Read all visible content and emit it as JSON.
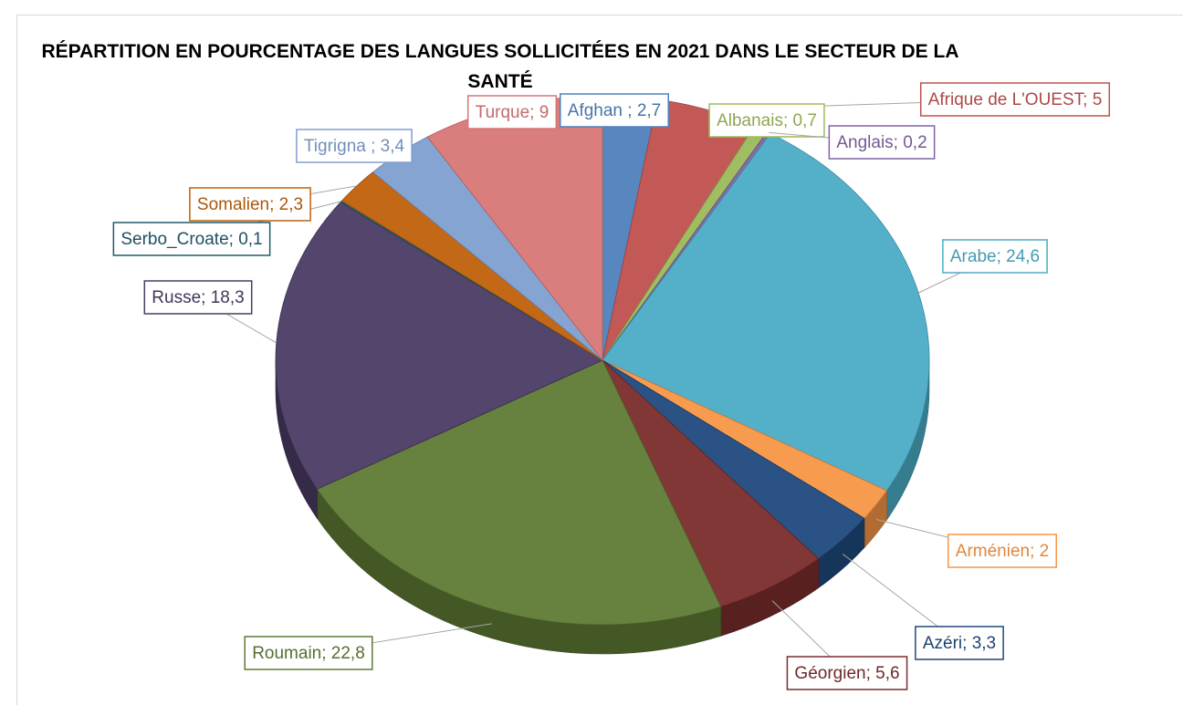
{
  "chart_data": {
    "type": "pie3d",
    "title": "RÉPARTITION EN POURCENTAGE DES LANGUES SOLLICITÉES EN 2021 DANS LE SECTEUR DE LA SANTÉ",
    "values": [
      2.7,
      5,
      0.7,
      0.2,
      24.6,
      2,
      3.3,
      5.6,
      22.8,
      18.3,
      0.1,
      2.3,
      3.4,
      9
    ],
    "value_labels": [
      "Afghan ; 2,7",
      "Afrique de L'OUEST; 5",
      "Albanais; 0,7",
      "Anglais; 0,2",
      "Arabe; 24,6",
      "Arménien; 2",
      "Azéri; 3,3",
      "Géorgien; 5,6",
      "Roumain; 22,8",
      "Russe; 18,3",
      "Serbo_Croate; 0,1",
      "Somalien; 2,3",
      "Tigrigna ; 3,4",
      "Turque; 9"
    ],
    "colors": [
      "#4f81bd",
      "#c0504d",
      "#9bbb59",
      "#8064a2",
      "#4bacc6",
      "#f79646",
      "#1f497d",
      "#7b2c2c",
      "#5f7a34",
      "#4a3b63",
      "#215968",
      "#c0600a",
      "#7f9fcf",
      "#d87676"
    ]
  }
}
